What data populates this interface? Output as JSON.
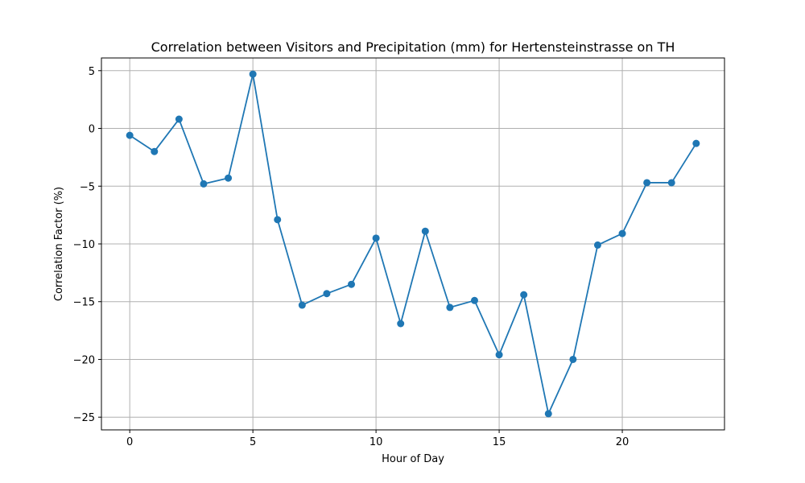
{
  "chart_data": {
    "type": "line",
    "title": "Correlation between Visitors and Precipitation (mm) for Hertensteinstrasse on TH",
    "xlabel": "Hour of Day",
    "ylabel": "Correlation Factor (%)",
    "xlim": [
      -1.15,
      24.15
    ],
    "ylim": [
      -26.1,
      6.1
    ],
    "xticks": [
      0,
      5,
      10,
      15,
      20
    ],
    "xtick_labels": [
      "0",
      "5",
      "10",
      "15",
      "20"
    ],
    "yticks": [
      5,
      0,
      -5,
      -10,
      -15,
      -20,
      -25
    ],
    "ytick_labels": [
      "5",
      "0",
      "−5",
      "−10",
      "−15",
      "−20",
      "−25"
    ],
    "grid": true,
    "legend": false,
    "series": [
      {
        "name": "Correlation Factor",
        "color": "#1f77b4",
        "marker": "circle",
        "x": [
          0,
          1,
          2,
          3,
          4,
          5,
          6,
          7,
          8,
          9,
          10,
          11,
          12,
          13,
          14,
          15,
          16,
          17,
          18,
          19,
          20,
          21,
          22,
          23
        ],
        "values": [
          -0.6,
          -2.0,
          0.8,
          -4.8,
          -4.3,
          4.7,
          -7.9,
          -15.3,
          -14.3,
          -13.5,
          -9.5,
          -16.9,
          -8.9,
          -15.5,
          -14.9,
          -19.6,
          -14.4,
          -24.7,
          -20.0,
          -10.1,
          -9.1,
          -4.7,
          -4.7,
          -1.3
        ]
      }
    ]
  }
}
